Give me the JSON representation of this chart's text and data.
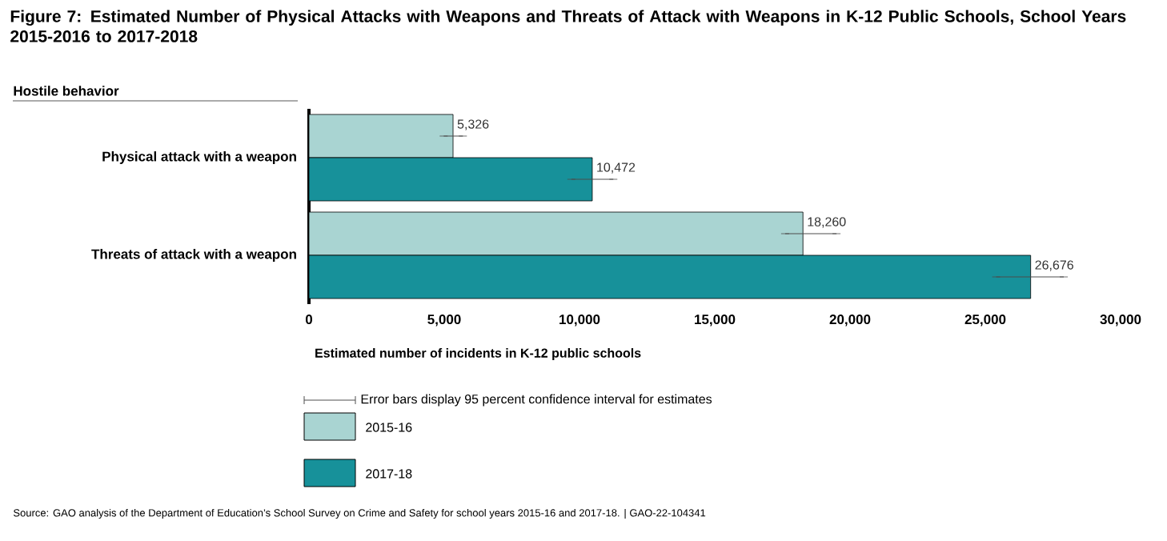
{
  "chart_data": {
    "type": "bar",
    "orientation": "horizontal",
    "title": "Figure 7: Estimated Number of Physical Attacks with Weapons and Threats of Attack with Weapons in K-12 Public Schools, School Years 2015-2016 to 2017-2018",
    "ylabel": "Hostile behavior",
    "xlabel": "Estimated number of incidents in K-12 public schools",
    "categories": [
      "Physical attack with a weapon",
      "Threats of attack with a weapon"
    ],
    "series": [
      {
        "name": "2015-16",
        "color": "#a9d4d2",
        "values": [
          5326,
          18260
        ],
        "errors": [
          [
            4980,
            5690
          ],
          [
            17600,
            19500
          ]
        ],
        "value_labels": [
          "5,326",
          "18,260"
        ]
      },
      {
        "name": "2017-18",
        "color": "#17919a",
        "values": [
          10472,
          26676
        ],
        "errors": [
          [
            9700,
            11250
          ],
          [
            25400,
            27900
          ]
        ],
        "value_labels": [
          "10,472",
          "26,676"
        ]
      }
    ],
    "xlim": [
      0,
      30000
    ],
    "xticks": [
      0,
      {
        "value": 5000,
        "label": "5,000"
      },
      {
        "value": 10000,
        "label": "10,000"
      },
      {
        "value": 15000,
        "label": "15,000"
      },
      {
        "value": 20000,
        "label": "20,000"
      },
      {
        "value": 25000,
        "label": "25,000"
      },
      {
        "value": 30000,
        "label": "30,000"
      }
    ],
    "legend": "bottom",
    "annotations": [
      "Error bars display 95 percent confidence interval for estimates",
      "Source: GAO analysis of the Department of Education’s School Survey on Crime and Safety for school years 2015-16 and 2017-18.  |  GAO-22-104341"
    ]
  }
}
